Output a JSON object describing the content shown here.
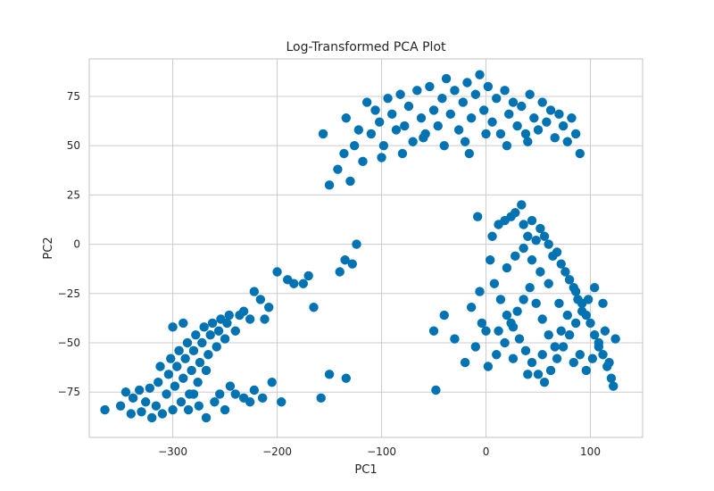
{
  "chart_data": {
    "type": "scatter",
    "title": "Log-Transformed PCA Plot",
    "xlabel": "PC1",
    "ylabel": "PC2",
    "xlim": [
      -380,
      150
    ],
    "ylim": [
      -98,
      94
    ],
    "xticks": [
      -300,
      -200,
      -100,
      0,
      100
    ],
    "yticks": [
      -75,
      -50,
      -25,
      0,
      25,
      50,
      75
    ],
    "xtick_labels": [
      "−300",
      "−200",
      "−100",
      "0",
      "100"
    ],
    "ytick_labels": [
      "−75",
      "−50",
      "−25",
      "0",
      "25",
      "50",
      "75"
    ],
    "grid": true,
    "legend": "none",
    "marker_color": "#0173b2",
    "series": [
      {
        "values": [
          [
            -365,
            -84
          ],
          [
            -350,
            -82
          ],
          [
            -345,
            -75
          ],
          [
            -340,
            -86
          ],
          [
            -338,
            -78
          ],
          [
            -332,
            -74
          ],
          [
            -330,
            -85
          ],
          [
            -326,
            -80
          ],
          [
            -322,
            -73
          ],
          [
            -320,
            -88
          ],
          [
            -316,
            -82
          ],
          [
            -314,
            -70
          ],
          [
            -312,
            -62
          ],
          [
            -310,
            -86
          ],
          [
            -306,
            -76
          ],
          [
            -304,
            -66
          ],
          [
            -302,
            -58
          ],
          [
            -300,
            -84
          ],
          [
            -298,
            -72
          ],
          [
            -296,
            -62
          ],
          [
            -294,
            -54
          ],
          [
            -292,
            -80
          ],
          [
            -290,
            -68
          ],
          [
            -288,
            -58
          ],
          [
            -286,
            -50
          ],
          [
            -284,
            -76
          ],
          [
            -282,
            -64
          ],
          [
            -280,
            -54
          ],
          [
            -278,
            -46
          ],
          [
            -276,
            -70
          ],
          [
            -274,
            -60
          ],
          [
            -272,
            -50
          ],
          [
            -270,
            -42
          ],
          [
            -268,
            -64
          ],
          [
            -266,
            -56
          ],
          [
            -264,
            -46
          ],
          [
            -262,
            -40
          ],
          [
            -258,
            -52
          ],
          [
            -256,
            -44
          ],
          [
            -254,
            -38
          ],
          [
            -250,
            -48
          ],
          [
            -248,
            -40
          ],
          [
            -246,
            -36
          ],
          [
            -240,
            -44
          ],
          [
            -236,
            -36
          ],
          [
            -232,
            -34
          ],
          [
            -226,
            -38
          ],
          [
            -222,
            -24
          ],
          [
            -216,
            -28
          ],
          [
            -212,
            -38
          ],
          [
            -208,
            -32
          ],
          [
            -300,
            -42
          ],
          [
            -290,
            -40
          ],
          [
            -285,
            -84
          ],
          [
            -280,
            -76
          ],
          [
            -275,
            -82
          ],
          [
            -268,
            -88
          ],
          [
            -260,
            -80
          ],
          [
            -255,
            -76
          ],
          [
            -250,
            -84
          ],
          [
            -245,
            -72
          ],
          [
            -240,
            -76
          ],
          [
            -232,
            -78
          ],
          [
            -226,
            -80
          ],
          [
            -222,
            -74
          ],
          [
            -214,
            -78
          ],
          [
            -205,
            -70
          ],
          [
            -200,
            -14
          ],
          [
            -196,
            -80
          ],
          [
            -190,
            -18
          ],
          [
            -184,
            -20
          ],
          [
            -175,
            -20
          ],
          [
            -170,
            -16
          ],
          [
            -165,
            -32
          ],
          [
            -158,
            -78
          ],
          [
            -150,
            -66
          ],
          [
            -140,
            -14
          ],
          [
            -135,
            -8
          ],
          [
            -128,
            -10
          ],
          [
            -124,
            0
          ],
          [
            -134,
            -68
          ],
          [
            -48,
            -74
          ],
          [
            -156,
            56
          ],
          [
            -150,
            30
          ],
          [
            -142,
            38
          ],
          [
            -136,
            46
          ],
          [
            -134,
            64
          ],
          [
            -130,
            32
          ],
          [
            -126,
            50
          ],
          [
            -122,
            58
          ],
          [
            -118,
            42
          ],
          [
            -114,
            72
          ],
          [
            -110,
            56
          ],
          [
            -106,
            68
          ],
          [
            -102,
            62
          ],
          [
            -98,
            50
          ],
          [
            -94,
            74
          ],
          [
            -90,
            66
          ],
          [
            -86,
            58
          ],
          [
            -82,
            76
          ],
          [
            -78,
            60
          ],
          [
            -74,
            70
          ],
          [
            -70,
            52
          ],
          [
            -66,
            78
          ],
          [
            -62,
            64
          ],
          [
            -58,
            56
          ],
          [
            -54,
            80
          ],
          [
            -50,
            68
          ],
          [
            -46,
            60
          ],
          [
            -42,
            74
          ],
          [
            -38,
            84
          ],
          [
            -34,
            66
          ],
          [
            -30,
            78
          ],
          [
            -26,
            58
          ],
          [
            -22,
            72
          ],
          [
            -18,
            82
          ],
          [
            -14,
            64
          ],
          [
            -10,
            76
          ],
          [
            -6,
            86
          ],
          [
            -2,
            68
          ],
          [
            2,
            80
          ],
          [
            6,
            62
          ],
          [
            10,
            74
          ],
          [
            14,
            56
          ],
          [
            18,
            78
          ],
          [
            22,
            66
          ],
          [
            26,
            72
          ],
          [
            30,
            60
          ],
          [
            34,
            70
          ],
          [
            38,
            56
          ],
          [
            42,
            76
          ],
          [
            46,
            64
          ],
          [
            50,
            58
          ],
          [
            54,
            72
          ],
          [
            58,
            62
          ],
          [
            62,
            68
          ],
          [
            66,
            54
          ],
          [
            70,
            66
          ],
          [
            74,
            60
          ],
          [
            78,
            52
          ],
          [
            82,
            64
          ],
          [
            86,
            56
          ],
          [
            90,
            46
          ],
          [
            -60,
            54
          ],
          [
            -40,
            50
          ],
          [
            -20,
            52
          ],
          [
            0,
            56
          ],
          [
            20,
            50
          ],
          [
            40,
            52
          ],
          [
            -80,
            46
          ],
          [
            -100,
            44
          ],
          [
            -16,
            46
          ],
          [
            -8,
            14
          ],
          [
            6,
            4
          ],
          [
            12,
            10
          ],
          [
            18,
            12
          ],
          [
            24,
            14
          ],
          [
            28,
            16
          ],
          [
            34,
            20
          ],
          [
            36,
            10
          ],
          [
            40,
            4
          ],
          [
            44,
            12
          ],
          [
            48,
            2
          ],
          [
            52,
            8
          ],
          [
            56,
            4
          ],
          [
            60,
            0
          ],
          [
            64,
            -6
          ],
          [
            68,
            -4
          ],
          [
            72,
            -10
          ],
          [
            76,
            -14
          ],
          [
            80,
            -18
          ],
          [
            84,
            -22
          ],
          [
            88,
            -28
          ],
          [
            92,
            -30
          ],
          [
            96,
            -36
          ],
          [
            100,
            -40
          ],
          [
            104,
            -46
          ],
          [
            108,
            -50
          ],
          [
            112,
            -56
          ],
          [
            116,
            -62
          ],
          [
            120,
            -68
          ],
          [
            122,
            -72
          ],
          [
            124,
            -48
          ],
          [
            8,
            -20
          ],
          [
            14,
            -28
          ],
          [
            20,
            -36
          ],
          [
            26,
            -42
          ],
          [
            32,
            -48
          ],
          [
            38,
            -54
          ],
          [
            44,
            -60
          ],
          [
            50,
            -66
          ],
          [
            56,
            -70
          ],
          [
            62,
            -64
          ],
          [
            68,
            -58
          ],
          [
            74,
            -52
          ],
          [
            80,
            -46
          ],
          [
            86,
            -40
          ],
          [
            92,
            -34
          ],
          [
            98,
            -28
          ],
          [
            104,
            -22
          ],
          [
            0,
            -44
          ],
          [
            -10,
            -52
          ],
          [
            -20,
            -60
          ],
          [
            -30,
            -48
          ],
          [
            -40,
            -36
          ],
          [
            -50,
            -44
          ],
          [
            -14,
            -32
          ],
          [
            -6,
            -24
          ],
          [
            2,
            -62
          ],
          [
            10,
            -56
          ],
          [
            18,
            -50
          ],
          [
            24,
            -40
          ],
          [
            30,
            -34
          ],
          [
            36,
            -28
          ],
          [
            42,
            -22
          ],
          [
            48,
            -30
          ],
          [
            54,
            -38
          ],
          [
            60,
            -46
          ],
          [
            66,
            -52
          ],
          [
            72,
            -44
          ],
          [
            78,
            -36
          ],
          [
            84,
            -60
          ],
          [
            90,
            -56
          ],
          [
            96,
            -64
          ],
          [
            102,
            -58
          ],
          [
            108,
            -52
          ],
          [
            114,
            -44
          ],
          [
            20,
            -12
          ],
          [
            28,
            -6
          ],
          [
            36,
            -2
          ],
          [
            44,
            -8
          ],
          [
            52,
            -14
          ],
          [
            60,
            -20
          ],
          [
            4,
            -8
          ],
          [
            -4,
            -40
          ],
          [
            12,
            -44
          ],
          [
            26,
            -58
          ],
          [
            40,
            -66
          ],
          [
            54,
            -56
          ],
          [
            70,
            -30
          ],
          [
            86,
            -24
          ],
          [
            112,
            -30
          ],
          [
            118,
            -60
          ]
        ]
      }
    ]
  }
}
